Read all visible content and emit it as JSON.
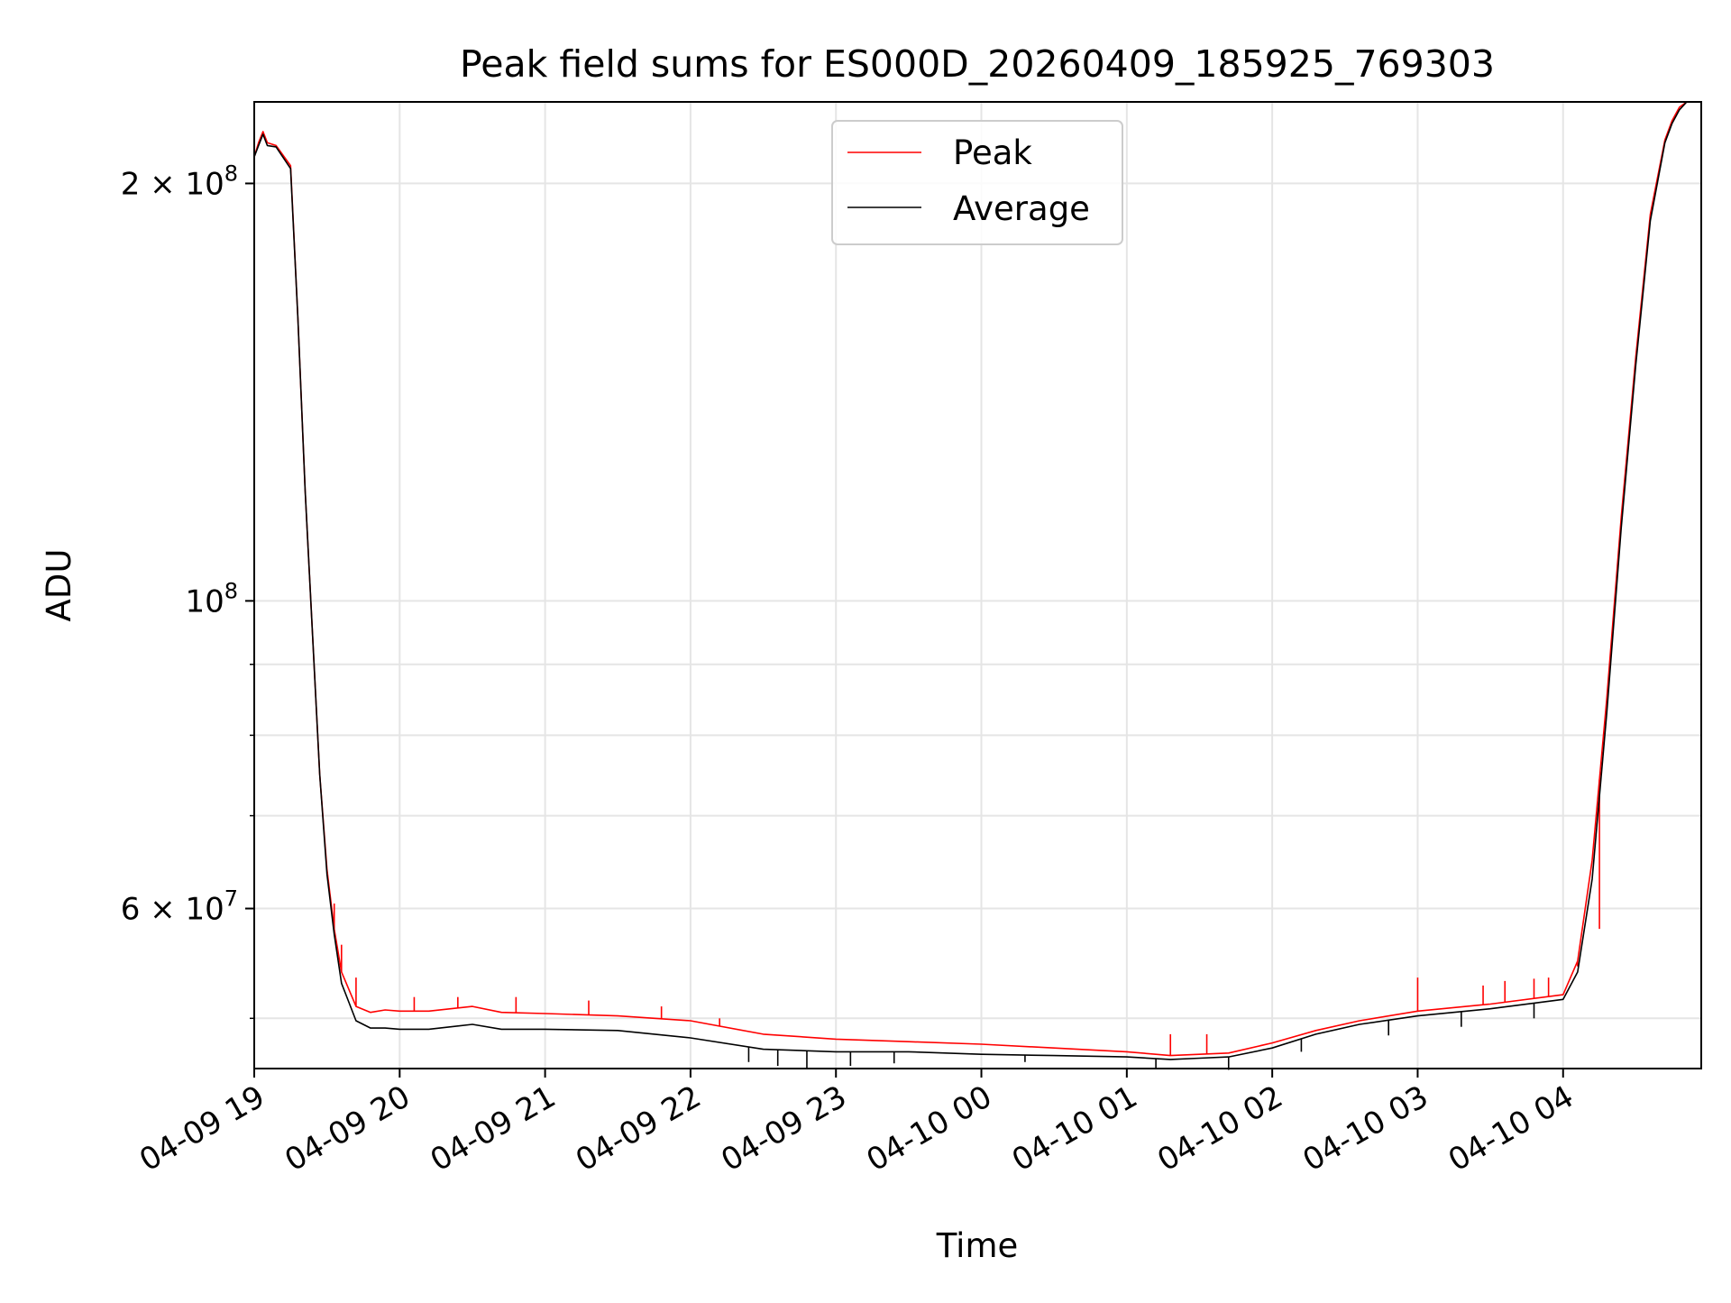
{
  "chart_data": {
    "type": "line",
    "title": "Peak field sums for ES000D_20260409_185925_769303",
    "xlabel": "Time",
    "ylabel": "ADU",
    "yscale": "log",
    "x_units": "hours since 2026-04-09 19:00",
    "xlim": [
      0.0,
      9.95
    ],
    "ylim": [
      46000000,
      229000000
    ],
    "x_ticks": [
      {
        "value": 0,
        "label": "04-09 19"
      },
      {
        "value": 1,
        "label": "04-09 20"
      },
      {
        "value": 2,
        "label": "04-09 21"
      },
      {
        "value": 3,
        "label": "04-09 22"
      },
      {
        "value": 4,
        "label": "04-09 23"
      },
      {
        "value": 5,
        "label": "04-10 00"
      },
      {
        "value": 6,
        "label": "04-10 01"
      },
      {
        "value": 7,
        "label": "04-10 02"
      },
      {
        "value": 8,
        "label": "04-10 03"
      },
      {
        "value": 9,
        "label": "04-10 04"
      }
    ],
    "y_major_ticks": [
      {
        "value": 100000000,
        "base": "10",
        "exp": "8",
        "coef": ""
      },
      {
        "value": 200000000,
        "base": "10",
        "exp": "8",
        "coef": "2"
      },
      {
        "value": 60000000,
        "base": "10",
        "exp": "7",
        "coef": "6"
      }
    ],
    "y_minor_ticks": [
      50000000,
      70000000,
      80000000,
      90000000
    ],
    "times_symbol": "×",
    "grid": true,
    "legend_position": "upper-center",
    "series": [
      {
        "name": "Peak",
        "color": "#ff0000",
        "x": [
          0.0,
          0.03,
          0.06,
          0.09,
          0.15,
          0.25,
          0.3,
          0.35,
          0.4,
          0.45,
          0.5,
          0.55,
          0.6,
          0.7,
          0.8,
          0.9,
          1.0,
          1.2,
          1.5,
          1.7,
          2.0,
          2.5,
          3.0,
          3.5,
          4.0,
          4.5,
          5.0,
          5.5,
          6.0,
          6.3,
          6.5,
          6.7,
          7.0,
          7.3,
          7.6,
          8.0,
          8.5,
          9.0,
          9.1,
          9.2,
          9.3,
          9.4,
          9.5,
          9.6,
          9.7,
          9.75,
          9.8,
          9.85,
          9.95
        ],
        "y": [
          209000000,
          214000000,
          218000000,
          214000000,
          213000000,
          206000000,
          160000000,
          120000000,
          95000000,
          75000000,
          64000000,
          58000000,
          54000000,
          51000000,
          50500000,
          50700000,
          50600000,
          50600000,
          51000000,
          50500000,
          50400000,
          50200000,
          49800000,
          48700000,
          48300000,
          48100000,
          47900000,
          47600000,
          47300000,
          47000000,
          47100000,
          47200000,
          48000000,
          49000000,
          49800000,
          50600000,
          51200000,
          52000000,
          55000000,
          65000000,
          85000000,
          115000000,
          150000000,
          190000000,
          215000000,
          222000000,
          227000000,
          229000000,
          229000000
        ],
        "spikes": [
          {
            "x": 0.55,
            "y": 60500000
          },
          {
            "x": 0.6,
            "y": 56500000
          },
          {
            "x": 0.7,
            "y": 53500000
          },
          {
            "x": 1.1,
            "y": 51800000
          },
          {
            "x": 1.4,
            "y": 51800000
          },
          {
            "x": 1.8,
            "y": 51800000
          },
          {
            "x": 2.3,
            "y": 51500000
          },
          {
            "x": 2.8,
            "y": 51000000
          },
          {
            "x": 3.2,
            "y": 50000000
          },
          {
            "x": 6.3,
            "y": 48700000
          },
          {
            "x": 6.55,
            "y": 48700000
          },
          {
            "x": 8.0,
            "y": 53500000
          },
          {
            "x": 8.45,
            "y": 52800000
          },
          {
            "x": 8.6,
            "y": 53200000
          },
          {
            "x": 8.8,
            "y": 53400000
          },
          {
            "x": 8.9,
            "y": 53500000
          },
          {
            "x": 9.1,
            "y": 54500000
          },
          {
            "x": 9.25,
            "y": 58000000
          }
        ]
      },
      {
        "name": "Average",
        "color": "#000000",
        "x": [
          0.0,
          0.03,
          0.06,
          0.09,
          0.15,
          0.25,
          0.3,
          0.35,
          0.4,
          0.45,
          0.5,
          0.55,
          0.6,
          0.7,
          0.8,
          0.9,
          1.0,
          1.2,
          1.5,
          1.7,
          2.0,
          2.5,
          3.0,
          3.5,
          4.0,
          4.5,
          5.0,
          5.5,
          6.0,
          6.3,
          6.5,
          6.7,
          7.0,
          7.3,
          7.6,
          8.0,
          8.5,
          9.0,
          9.1,
          9.2,
          9.3,
          9.4,
          9.5,
          9.6,
          9.7,
          9.75,
          9.8,
          9.85,
          9.95
        ],
        "y": [
          209000000,
          213000000,
          217000000,
          213000000,
          212500000,
          205000000,
          160000000,
          120000000,
          95000000,
          75000000,
          63500000,
          57500000,
          53000000,
          49800000,
          49200000,
          49200000,
          49100000,
          49100000,
          49500000,
          49100000,
          49100000,
          49000000,
          48400000,
          47500000,
          47300000,
          47300000,
          47100000,
          47000000,
          46900000,
          46700000,
          46800000,
          46900000,
          47600000,
          48700000,
          49500000,
          50200000,
          50800000,
          51600000,
          54000000,
          63000000,
          83000000,
          113000000,
          148000000,
          188000000,
          214000000,
          221000000,
          226000000,
          229000000,
          229000000
        ],
        "dips": [
          {
            "x": 3.4,
            "y": 46500000
          },
          {
            "x": 3.6,
            "y": 46200000
          },
          {
            "x": 3.8,
            "y": 46000000
          },
          {
            "x": 4.1,
            "y": 46200000
          },
          {
            "x": 4.4,
            "y": 46400000
          },
          {
            "x": 5.3,
            "y": 46500000
          },
          {
            "x": 6.2,
            "y": 46000000
          },
          {
            "x": 6.7,
            "y": 45900000
          },
          {
            "x": 7.2,
            "y": 47300000
          },
          {
            "x": 7.8,
            "y": 48600000
          },
          {
            "x": 8.3,
            "y": 49300000
          },
          {
            "x": 8.8,
            "y": 50000000
          }
        ]
      }
    ]
  }
}
